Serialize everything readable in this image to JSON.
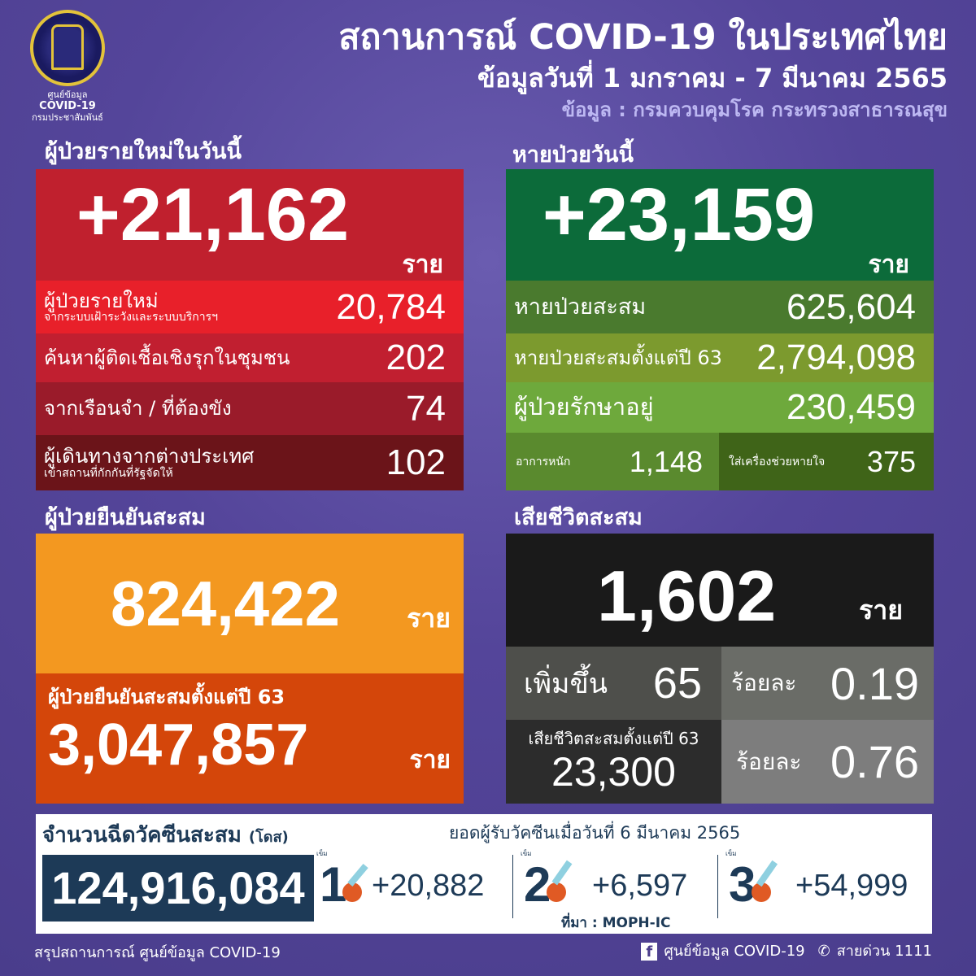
{
  "header": {
    "logo_text": [
      "ศูนย์ข้อมูล",
      "COVID-19",
      "กรมประชาสัมพันธ์"
    ],
    "title": "สถานการณ์ COVID-19 ในประเทศไทย",
    "date_range": "ข้อมูลวันที่ 1 มกราคม  - 7 มีนาคม 2565",
    "source": "ข้อมูล : กรมควบคุมโรค กระทรวงสาธารณสุข"
  },
  "new_cases": {
    "heading": "ผู้ป่วยรายใหม่ในวันนี้",
    "total": "+21,162",
    "unit": "ราย",
    "rows": [
      {
        "label": "ผู้ป่วยรายใหม่",
        "sublabel": "จากระบบเฝ้าระวังและระบบบริการฯ",
        "value": "20,784"
      },
      {
        "label": "ค้นหาผู้ติดเชื้อเชิงรุกในชุมชน",
        "value": "202"
      },
      {
        "label": "จากเรือนจำ / ที่ต้องขัง",
        "value": "74"
      },
      {
        "label": "ผู้เดินทางจากต่างประเทศ",
        "sublabel": "เข้าสถานที่กักกันที่รัฐจัดให้",
        "value": "102"
      }
    ]
  },
  "recovered": {
    "heading": "หายป่วยวันนี้",
    "total": "+23,159",
    "unit": "ราย",
    "rows": [
      {
        "label": "หายป่วยสะสม",
        "value": "625,604"
      },
      {
        "label": "หายป่วยสะสมตั้งแต่ปี 63",
        "value": "2,794,098"
      },
      {
        "label": "ผู้ป่วยรักษาอยู่",
        "value": "230,459"
      }
    ],
    "severe_label": "อาการหนัก",
    "severe_value": "1,148",
    "ventilator_label": "ใส่เครื่องช่วยหายใจ",
    "ventilator_value": "375"
  },
  "confirmed": {
    "heading": "ผู้ป่วยยืนยันสะสม",
    "total": "824,422",
    "unit": "ราย",
    "since63_label": "ผู้ป่วยยืนยันสะสมตั้งแต่ปี 63",
    "since63_value": "3,047,857",
    "since63_unit": "ราย"
  },
  "deaths": {
    "heading": "เสียชีวิตสะสม",
    "total": "1,602",
    "unit": "ราย",
    "increase_label": "เพิ่มขึ้น",
    "increase_value": "65",
    "pct_label": "ร้อยละ",
    "pct_value": "0.19",
    "since63_label": "เสียชีวิตสะสมตั้งแต่ปี 63",
    "since63_value": "23,300",
    "pct63_label": "ร้อยละ",
    "pct63_value": "0.76"
  },
  "vaccine": {
    "heading": "จำนวนฉีดวัคซีนสะสม",
    "heading_unit": "(โดส)",
    "total": "124,916,084",
    "daily_heading": "ยอดผู้รับวัคซีนเมื่อวันที่ 6 มีนาคม 2565",
    "dose_label": "เข็ม",
    "doses": [
      {
        "dose": "1",
        "value": "+20,882"
      },
      {
        "dose": "2",
        "value": "+6,597"
      },
      {
        "dose": "3",
        "value": "+54,999"
      }
    ],
    "source": "ที่มา : MOPH-IC"
  },
  "footer": {
    "left": "สรุปสถานการณ์ ศูนย์ข้อมูล COVID-19",
    "facebook": "ศูนย์ข้อมูล COVID-19",
    "hotline": "สายด่วน 1111"
  },
  "colors": {
    "new_cases": "#c0202e",
    "recovered": "#0c6b3a",
    "confirmed": "#f39820",
    "deaths": "#1a1a1a",
    "background": "#54459a",
    "vaccine_box": "#1d3a57"
  }
}
